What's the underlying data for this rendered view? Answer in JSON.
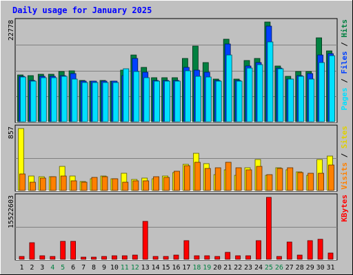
{
  "chart_data": {
    "type": "bar",
    "title": "Daily usage for January 2025",
    "categories": [
      "1",
      "2",
      "3",
      "4",
      "5",
      "6",
      "7",
      "8",
      "9",
      "10",
      "11",
      "12",
      "13",
      "14",
      "15",
      "16",
      "17",
      "18",
      "19",
      "20",
      "21",
      "22",
      "23",
      "24",
      "25",
      "26",
      "27",
      "28",
      "29",
      "30",
      "31"
    ],
    "weekend_days": [
      "4",
      "5",
      "11",
      "12",
      "18",
      "19",
      "25",
      "26"
    ],
    "panels": [
      {
        "id": "hits",
        "ymax_label": "22778",
        "ymax": 22778,
        "series": [
          {
            "name": "Hits",
            "color": "#008040",
            "values": [
              10700,
              10600,
              10800,
              10800,
              11500,
              11700,
              9500,
              9300,
              9500,
              9300,
              11800,
              15300,
              12400,
              10000,
              10000,
              10000,
              14400,
              17300,
              13500,
              9800,
              18800,
              9800,
              14000,
              14400,
              22778,
              12700,
              10300,
              11500,
              11500,
              19200,
              16200
            ]
          },
          {
            "name": "Files",
            "color": "#0040ff",
            "values": [
              10300,
              9500,
              10300,
              10300,
              10600,
              11000,
              9200,
              9200,
              9200,
              9200,
              10600,
              14400,
              11300,
              9500,
              9500,
              9500,
              12400,
              11800,
              11300,
              9500,
              17700,
              9500,
              12700,
              13500,
              21800,
              12200,
              9700,
              10600,
              11000,
              15300,
              15500
            ]
          },
          {
            "name": "Pages",
            "color": "#00e0ff",
            "values": [
              10200,
              9300,
              10100,
              10000,
              10300,
              9800,
              9000,
              9000,
              9000,
              9000,
              12100,
              11400,
              10100,
              9200,
              9300,
              9300,
              11600,
              10300,
              10200,
              9300,
              15300,
              9300,
              12200,
              13000,
              18300,
              12100,
              9800,
              10300,
              9800,
              13500,
              15100
            ]
          }
        ]
      },
      {
        "id": "visits",
        "ymax_label": "857",
        "ymax": 857,
        "series": [
          {
            "name": "Sites",
            "color": "#ffff00",
            "values": [
              857,
              200,
              190,
              190,
              330,
              200,
              120,
              160,
              200,
              160,
              240,
              150,
              170,
              160,
              200,
              250,
              360,
              510,
              370,
              220,
              290,
              210,
              310,
              430,
              210,
              310,
              290,
              260,
              210,
              430,
              480
            ]
          },
          {
            "name": "Visits",
            "color": "#ff8000",
            "values": [
              230,
              110,
              170,
              190,
              200,
              130,
              110,
              180,
              190,
              160,
              110,
              130,
              130,
              190,
              180,
              270,
              340,
              390,
              300,
              310,
              390,
              310,
              290,
              330,
              220,
              300,
              310,
              250,
              240,
              240,
              350
            ]
          }
        ]
      },
      {
        "id": "kbytes",
        "ymax_label": "15522603",
        "ymax": 15522603,
        "series": [
          {
            "name": "KBytes",
            "color": "#ff0000",
            "values": [
              700000,
              4200000,
              900000,
              700000,
              4400000,
              4400000,
              600000,
              600000,
              700000,
              800000,
              900000,
              1000000,
              9500000,
              700000,
              700000,
              1000000,
              4600000,
              900000,
              800000,
              700000,
              1800000,
              800000,
              900000,
              4600000,
              15522603,
              700000,
              4300000,
              1100000,
              4600000,
              5000000,
              1500000
            ]
          }
        ]
      }
    ]
  }
}
